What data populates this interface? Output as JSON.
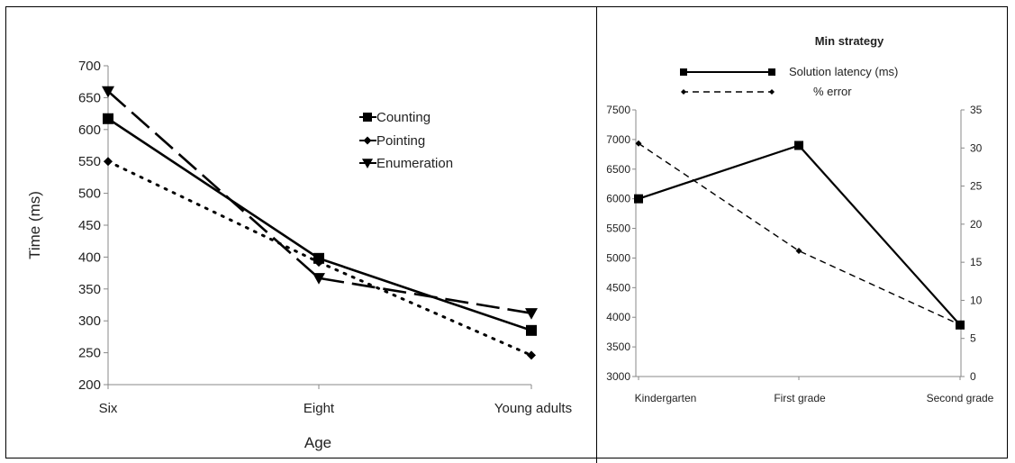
{
  "chart_data": [
    {
      "type": "line",
      "title": "",
      "xlabel": "Age",
      "ylabel": "Time (ms)",
      "categories": [
        "Six",
        "Eight",
        "Young adults"
      ],
      "ylim": [
        200,
        700
      ],
      "yticks": [
        200,
        250,
        300,
        350,
        400,
        450,
        500,
        550,
        600,
        650,
        700
      ],
      "grid": false,
      "legend_position": "top-right",
      "series": [
        {
          "name": "Counting",
          "values": [
            617,
            398,
            285
          ],
          "marker": "square",
          "line": "solid"
        },
        {
          "name": "Pointing",
          "values": [
            550,
            392,
            246
          ],
          "marker": "diamond",
          "line": "dotted"
        },
        {
          "name": "Enumeration",
          "values": [
            660,
            367,
            312
          ],
          "marker": "triangle-down",
          "line": "long-dash"
        }
      ]
    },
    {
      "type": "line",
      "title": "Min strategy",
      "xlabel": "",
      "ylabel": "",
      "categories": [
        "Kindergarten",
        "First grade",
        "Second grade"
      ],
      "ylim": [
        3000,
        7500
      ],
      "yticks": [
        3000,
        3500,
        4000,
        4500,
        5000,
        5500,
        6000,
        6500,
        7000,
        7500
      ],
      "y2lim": [
        0,
        35
      ],
      "y2ticks": [
        0,
        5,
        10,
        15,
        20,
        25,
        30,
        35
      ],
      "grid": false,
      "legend_position": "top",
      "series": [
        {
          "name": "Solution latency (ms)",
          "values": [
            6000,
            6900,
            3870
          ],
          "axis": "left",
          "marker": "square",
          "line": "solid"
        },
        {
          "name": "% error",
          "values": [
            30.6,
            16.5,
            6.8
          ],
          "axis": "right",
          "marker": "diamond",
          "line": "dashed"
        }
      ]
    }
  ]
}
